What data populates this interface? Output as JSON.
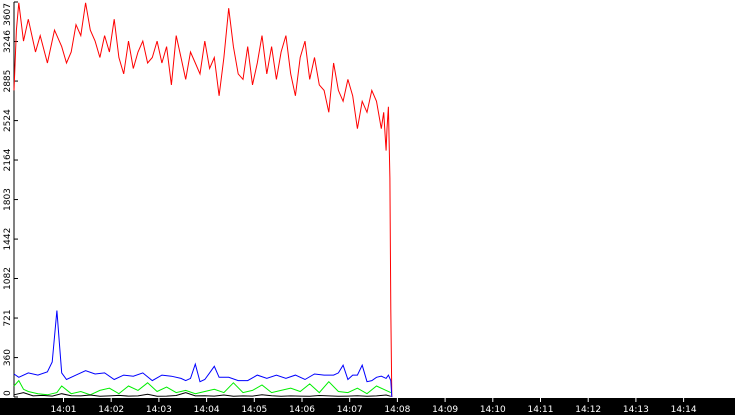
{
  "chart_data": {
    "type": "line",
    "title": "",
    "xlabel": "",
    "ylabel": "",
    "y_ticks": [
      0,
      360,
      721,
      1082,
      1442,
      1803,
      2164,
      2524,
      2885,
      3246,
      3607
    ],
    "x_ticks": [
      "14:01",
      "14:02",
      "14:03",
      "14:04",
      "14:05",
      "14:06",
      "14:07",
      "14:08",
      "14:09",
      "14:10",
      "14:11",
      "14:12",
      "14:13",
      "14:14"
    ],
    "ylim": [
      0,
      3607
    ],
    "xlim_minutes": [
      0,
      14.7
    ],
    "grid": false,
    "legend": "none",
    "background_color": "#ffffff",
    "axis_bar_color": "#000000",
    "series": [
      {
        "color": "#ff0000",
        "x": [
          0.0,
          0.05,
          0.1,
          0.2,
          0.3,
          0.45,
          0.55,
          0.7,
          0.85,
          1.0,
          1.1,
          1.2,
          1.3,
          1.4,
          1.5,
          1.6,
          1.7,
          1.8,
          1.9,
          2.0,
          2.1,
          2.2,
          2.3,
          2.4,
          2.5,
          2.6,
          2.7,
          2.8,
          2.9,
          3.0,
          3.1,
          3.2,
          3.3,
          3.4,
          3.5,
          3.6,
          3.7,
          3.8,
          3.9,
          4.0,
          4.1,
          4.2,
          4.3,
          4.4,
          4.5,
          4.6,
          4.7,
          4.8,
          4.9,
          5.0,
          5.1,
          5.2,
          5.3,
          5.4,
          5.5,
          5.6,
          5.7,
          5.8,
          5.9,
          6.0,
          6.1,
          6.2,
          6.3,
          6.4,
          6.5,
          6.6,
          6.7,
          6.8,
          6.9,
          7.0,
          7.1,
          7.2,
          7.3,
          7.4,
          7.5,
          7.6,
          7.7,
          7.75,
          7.8,
          7.82,
          7.85,
          7.88,
          7.9,
          7.92
        ],
        "values": [
          2800,
          3350,
          3600,
          3250,
          3450,
          3150,
          3300,
          3050,
          3350,
          3200,
          3050,
          3150,
          3400,
          3300,
          3600,
          3350,
          3250,
          3100,
          3300,
          3150,
          3450,
          3100,
          2950,
          3250,
          3000,
          3150,
          3250,
          3050,
          3100,
          3250,
          3050,
          3200,
          2850,
          3300,
          3100,
          2900,
          3150,
          3050,
          2950,
          3250,
          3000,
          3100,
          2750,
          3100,
          3550,
          3200,
          2950,
          2900,
          3200,
          2850,
          3050,
          3300,
          2950,
          3200,
          2900,
          3150,
          3300,
          2950,
          2750,
          3100,
          3250,
          2900,
          3100,
          2850,
          2800,
          2600,
          3050,
          2800,
          2700,
          2900,
          2750,
          2450,
          2700,
          2600,
          2800,
          2700,
          2450,
          2600,
          2250,
          2450,
          2650,
          2000,
          800,
          0
        ]
      },
      {
        "color": "#0000ff",
        "x": [
          0.0,
          0.1,
          0.3,
          0.5,
          0.7,
          0.8,
          0.9,
          0.95,
          1.0,
          1.1,
          1.3,
          1.5,
          1.7,
          1.9,
          2.1,
          2.3,
          2.5,
          2.7,
          2.9,
          3.1,
          3.3,
          3.5,
          3.6,
          3.7,
          3.8,
          3.9,
          4.0,
          4.1,
          4.2,
          4.3,
          4.5,
          4.7,
          4.9,
          5.1,
          5.3,
          5.5,
          5.7,
          5.9,
          6.1,
          6.3,
          6.5,
          6.7,
          6.8,
          6.9,
          7.0,
          7.1,
          7.2,
          7.3,
          7.4,
          7.5,
          7.6,
          7.7,
          7.8,
          7.85,
          7.9,
          7.92
        ],
        "values": [
          210,
          180,
          220,
          200,
          230,
          320,
          790,
          500,
          220,
          160,
          200,
          240,
          210,
          220,
          160,
          200,
          190,
          220,
          150,
          200,
          190,
          170,
          150,
          170,
          300,
          140,
          160,
          220,
          280,
          180,
          180,
          150,
          150,
          200,
          170,
          200,
          170,
          200,
          160,
          210,
          200,
          200,
          220,
          290,
          160,
          200,
          200,
          290,
          140,
          150,
          180,
          190,
          170,
          200,
          150,
          0
        ]
      },
      {
        "color": "#00ee00",
        "x": [
          0.0,
          0.1,
          0.2,
          0.3,
          0.5,
          0.7,
          0.9,
          1.0,
          1.2,
          1.4,
          1.6,
          1.8,
          2.0,
          2.2,
          2.4,
          2.6,
          2.8,
          3.0,
          3.2,
          3.4,
          3.6,
          3.8,
          4.0,
          4.2,
          4.4,
          4.6,
          4.8,
          5.0,
          5.2,
          5.4,
          5.6,
          5.8,
          6.0,
          6.2,
          6.4,
          6.6,
          6.8,
          7.0,
          7.2,
          7.4,
          7.6,
          7.8,
          7.9
        ],
        "values": [
          100,
          150,
          70,
          50,
          30,
          20,
          40,
          100,
          30,
          50,
          20,
          60,
          80,
          30,
          100,
          60,
          130,
          50,
          90,
          40,
          60,
          30,
          50,
          70,
          40,
          130,
          40,
          60,
          110,
          40,
          60,
          80,
          50,
          120,
          40,
          140,
          50,
          40,
          80,
          30,
          100,
          60,
          40
        ]
      },
      {
        "color": "#000000",
        "x": [
          0.0,
          0.2,
          0.4,
          0.6,
          0.8,
          1.0,
          1.2,
          1.4,
          1.6,
          1.8,
          2.0,
          2.2,
          2.4,
          2.6,
          2.8,
          3.0,
          3.2,
          3.4,
          3.6,
          3.8,
          4.0,
          4.2,
          4.4,
          4.6,
          4.8,
          5.0,
          5.2,
          5.4,
          5.6,
          5.8,
          6.0,
          6.2,
          6.4,
          6.6,
          6.8,
          7.0,
          7.2,
          7.4,
          7.6,
          7.8,
          7.9
        ],
        "values": [
          20,
          40,
          10,
          15,
          8,
          30,
          12,
          10,
          18,
          6,
          10,
          15,
          8,
          10,
          25,
          6,
          8,
          14,
          40,
          10,
          12,
          8,
          18,
          6,
          10,
          8,
          20,
          12,
          6,
          10,
          8,
          6,
          14,
          10,
          6,
          8,
          12,
          6,
          10,
          18,
          6
        ]
      }
    ]
  }
}
